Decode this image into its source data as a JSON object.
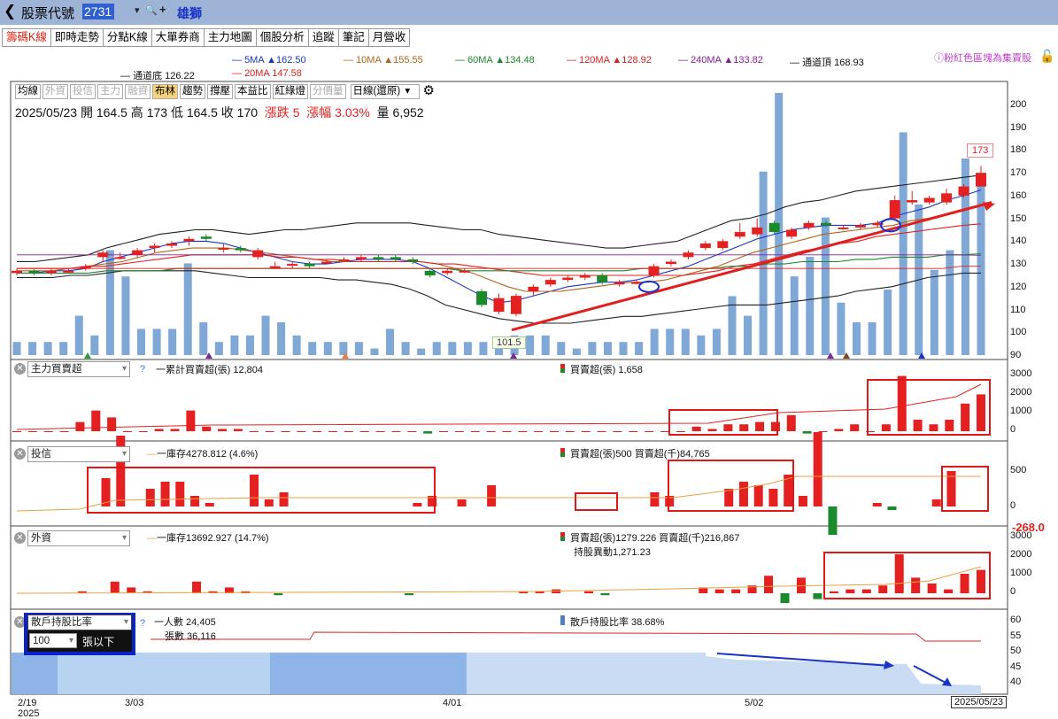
{
  "topbar": {
    "title": "股票代號",
    "code": "2731",
    "stock_name": "雄獅",
    "back_icon": "chevron-left-icon",
    "search_icon": "search-icon",
    "add_icon": "plus-icon"
  },
  "tabs": [
    {
      "label": "籌碼K線",
      "active": true
    },
    {
      "label": "即時走勢",
      "active": false
    },
    {
      "label": "分點K線",
      "active": false
    },
    {
      "label": "大單券商",
      "active": false
    },
    {
      "label": "主力地圖",
      "active": false
    },
    {
      "label": "個股分析",
      "active": false
    },
    {
      "label": "追蹤",
      "active": false
    },
    {
      "label": "筆記",
      "active": false
    },
    {
      "label": "月營收",
      "active": false
    }
  ],
  "legend": {
    "ma5": "5MA ▲162.50",
    "ma10": "10MA ▲155.55",
    "ma60": "60MA ▲134.48",
    "ma120": "120MA ▲128.92",
    "ma240": "240MA ▲133.82",
    "channel_top": "通道頂 168.93",
    "channel_bottom": "通道底 126.22",
    "ma20": "20MA 147.58",
    "hint": "ⓘ粉紅色區塊為集賣股",
    "lock_icon": "lock-icon"
  },
  "controls": {
    "items": [
      {
        "label": "均線",
        "state": "normal"
      },
      {
        "label": "外資",
        "state": "disabled"
      },
      {
        "label": "投信",
        "state": "disabled"
      },
      {
        "label": "主力",
        "state": "disabled"
      },
      {
        "label": "融資",
        "state": "disabled"
      },
      {
        "label": "布林",
        "state": "on"
      },
      {
        "label": "趨勢",
        "state": "normal"
      },
      {
        "label": "撐壓",
        "state": "normal"
      },
      {
        "label": "本益比",
        "state": "normal"
      },
      {
        "label": "紅綠燈",
        "state": "normal"
      },
      {
        "label": "分價量",
        "state": "disabled"
      }
    ],
    "period": "日線(還原)",
    "settings_icon": "gear-icon"
  },
  "ohlc": {
    "date": "2025/05/23",
    "open_label": "開",
    "open": "164.5",
    "high_label": "高",
    "high": "173",
    "low_label": "低",
    "low": "164.5",
    "close_label": "收",
    "close": "170",
    "change_label": "漲跌",
    "change": "5",
    "pct_label": "漲幅",
    "pct": "3.03%",
    "vol_label": "量",
    "vol": "6,952"
  },
  "price_axis": [
    "200",
    "190",
    "180",
    "170",
    "160",
    "150",
    "140",
    "130",
    "120",
    "110",
    "100",
    "90"
  ],
  "price_labels": {
    "high": "173",
    "low": "101.5"
  },
  "panels": {
    "main_force": {
      "select": "主力買賣超",
      "help": "?",
      "line_label": "一累計買賣超(張) 12,804",
      "bar_label": "買賣超(張) 1,658",
      "axis": [
        "3000",
        "2000",
        "1000",
        "0"
      ]
    },
    "trust": {
      "select": "投信",
      "line_label": "一庫存4278.812 (4.6%)",
      "bar_label": "買賣超(張)500 買賣超(千)84,765",
      "axis": [
        "500",
        "0"
      ],
      "min_label": "-268.0"
    },
    "foreign": {
      "select": "外資",
      "line_label": "一庫存13692.927 (14.7%)",
      "bar_label": "買賣超(張)1279.226 買賣超(千)216,867",
      "bar_label2": "持股異動1,271.23",
      "axis": [
        "3000",
        "2000",
        "1000",
        "0"
      ]
    },
    "retail": {
      "select": "散戶持股比率",
      "help": "?",
      "threshold": "100",
      "unit": "張以下",
      "people": "一人數 24,405",
      "shares": "張數 36,116",
      "ratio": "散戶持股比率 38.68%",
      "axis": [
        "60",
        "55",
        "50",
        "45",
        "40"
      ]
    }
  },
  "x_axis": {
    "dates": [
      "2/19",
      "3/03",
      "4/01",
      "5/02"
    ],
    "year": "2025",
    "current": "2025/05/23"
  },
  "colors": {
    "up": "#e52020",
    "down": "#1a8a2a",
    "volume": "#7fa8d6",
    "accent": "#1a34c8"
  }
}
